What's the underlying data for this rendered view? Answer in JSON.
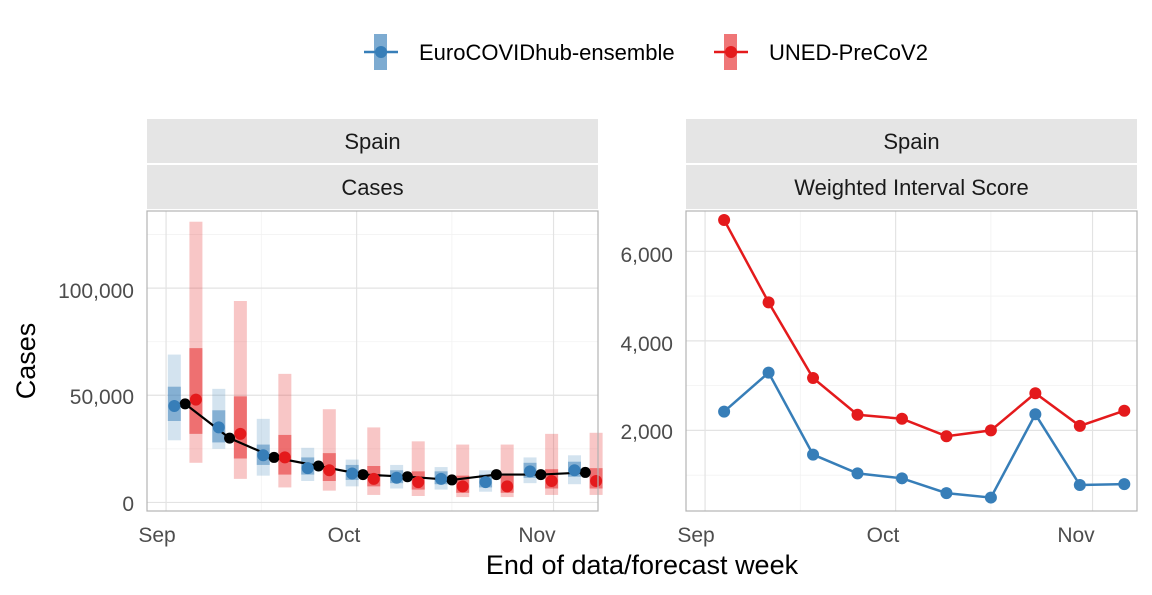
{
  "colors": {
    "ensemble": "#377EB8",
    "uned": "#E41A1C",
    "observed": "#000000",
    "strip_bg": "#E5E5E5",
    "grid": "#EBEBEB",
    "panel_border": "#B3B3B3"
  },
  "legend": {
    "placement": "top",
    "items": [
      {
        "name": "EuroCOVIDhub-ensemble",
        "color": "#377EB8"
      },
      {
        "name": "UNED-PreCoV2",
        "color": "#E41A1C"
      }
    ]
  },
  "axes": {
    "x_title": "End of data/forecast week",
    "y_title": "Cases",
    "x_ticks": [
      "Sep",
      "Oct",
      "Nov"
    ]
  },
  "chart_data": [
    {
      "type": "line",
      "facet": [
        "Spain",
        "Cases"
      ],
      "y_ticks": [
        "0",
        "50,000",
        "100,000"
      ],
      "ylim": [
        -4000,
        136000
      ],
      "xlim": [
        "2021-08-29",
        "2021-11-08"
      ],
      "x_dates": [
        "2021-09-04",
        "2021-09-11",
        "2021-09-18",
        "2021-09-25",
        "2021-10-02",
        "2021-10-09",
        "2021-10-16",
        "2021-10-23",
        "2021-10-30",
        "2021-11-06"
      ],
      "observed": [
        46000,
        30000,
        21000,
        17000,
        13000,
        12000,
        10500,
        13000,
        13000,
        14000
      ],
      "series": [
        {
          "name": "EuroCOVIDhub-ensemble",
          "median": [
            45000,
            35000,
            22000,
            16000,
            13500,
            11500,
            11000,
            9500,
            14500,
            15000
          ],
          "inner": [
            [
              38000,
              54000
            ],
            [
              28000,
              43000
            ],
            [
              17500,
              27000
            ],
            [
              13000,
              21000
            ],
            [
              10500,
              17500
            ],
            [
              9000,
              15000
            ],
            [
              8500,
              14500
            ],
            [
              7000,
              13000
            ],
            [
              11500,
              18500
            ],
            [
              12000,
              19000
            ]
          ],
          "outer": [
            [
              29000,
              69000
            ],
            [
              25000,
              53000
            ],
            [
              12500,
              39000
            ],
            [
              10000,
              25500
            ],
            [
              7500,
              20000
            ],
            [
              6500,
              17500
            ],
            [
              6000,
              16500
            ],
            [
              5000,
              15000
            ],
            [
              9000,
              21000
            ],
            [
              8500,
              22000
            ]
          ]
        },
        {
          "name": "UNED-PreCoV2",
          "median": [
            48000,
            32000,
            21000,
            15000,
            11000,
            9500,
            7500,
            7500,
            10000,
            10000
          ],
          "inner": [
            [
              32000,
              72000
            ],
            [
              20500,
              49500
            ],
            [
              13000,
              31500
            ],
            [
              10000,
              23000
            ],
            [
              7500,
              17000
            ],
            [
              6000,
              14500
            ],
            [
              4500,
              12500
            ],
            [
              4500,
              12500
            ],
            [
              6500,
              15500
            ],
            [
              6500,
              16000
            ]
          ],
          "outer": [
            [
              18500,
              131000
            ],
            [
              11000,
              94000
            ],
            [
              7000,
              60000
            ],
            [
              5500,
              43500
            ],
            [
              3500,
              35000
            ],
            [
              3000,
              28500
            ],
            [
              2500,
              27000
            ],
            [
              2500,
              27000
            ],
            [
              3500,
              32000
            ],
            [
              3500,
              32500
            ]
          ]
        }
      ]
    },
    {
      "type": "line",
      "facet": [
        "Spain",
        "Weighted Interval Score"
      ],
      "y_ticks": [
        "2,000",
        "4,000",
        "6,000"
      ],
      "ylim": [
        200,
        6900
      ],
      "xlim": [
        "2021-08-29",
        "2021-11-08"
      ],
      "x_dates": [
        "2021-09-04",
        "2021-09-11",
        "2021-09-18",
        "2021-09-25",
        "2021-10-02",
        "2021-10-09",
        "2021-10-16",
        "2021-10-23",
        "2021-10-30",
        "2021-11-06"
      ],
      "series": [
        {
          "name": "EuroCOVIDhub-ensemble",
          "values": [
            2420,
            3290,
            1460,
            1040,
            930,
            600,
            500,
            2360,
            780,
            800
          ]
        },
        {
          "name": "UNED-PreCoV2",
          "values": [
            6700,
            4860,
            3170,
            2350,
            2260,
            1870,
            2000,
            2830,
            2100,
            2440
          ]
        }
      ]
    }
  ]
}
